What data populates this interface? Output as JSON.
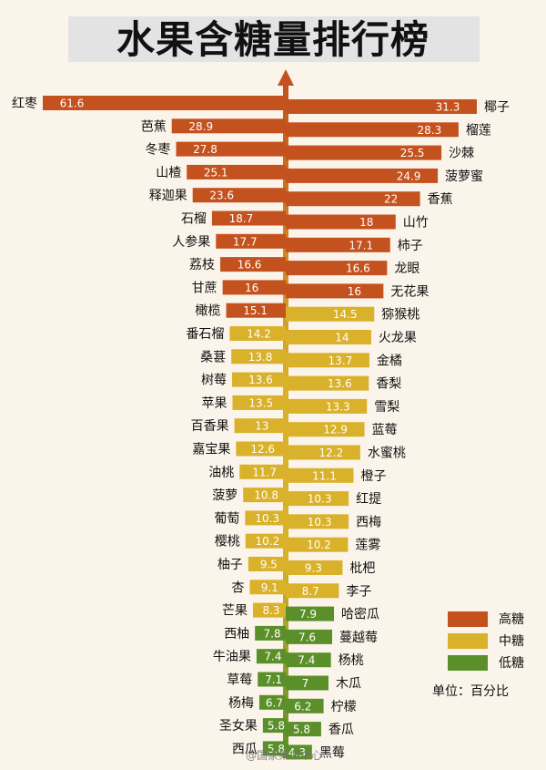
{
  "title": "水果含糖量排行榜",
  "legend": {
    "high": {
      "label": "高糖",
      "color": "#c4521f"
    },
    "mid": {
      "label": "中糖",
      "color": "#d9b12a"
    },
    "low": {
      "label": "低糖",
      "color": "#5b8f2a"
    }
  },
  "unit": "单位：百分比",
  "watermark": "@国家果业中心",
  "chart_data": {
    "type": "bar",
    "title": "水果含糖量排行榜",
    "unit": "单位：百分比",
    "series": [
      {
        "name": "left",
        "items": [
          {
            "name": "红枣",
            "value": 61.6,
            "level": "high"
          },
          {
            "name": "芭蕉",
            "value": 28.9,
            "level": "high"
          },
          {
            "name": "冬枣",
            "value": 27.8,
            "level": "high"
          },
          {
            "name": "山楂",
            "value": 25.1,
            "level": "high"
          },
          {
            "name": "释迦果",
            "value": 23.6,
            "level": "high"
          },
          {
            "name": "石榴",
            "value": 18.7,
            "level": "high"
          },
          {
            "name": "人参果",
            "value": 17.7,
            "level": "high"
          },
          {
            "name": "荔枝",
            "value": 16.6,
            "level": "high"
          },
          {
            "name": "甘蔗",
            "value": 16,
            "level": "high"
          },
          {
            "name": "橄榄",
            "value": 15.1,
            "level": "high"
          },
          {
            "name": "番石榴",
            "value": 14.2,
            "level": "mid"
          },
          {
            "name": "桑葚",
            "value": 13.8,
            "level": "mid"
          },
          {
            "name": "树莓",
            "value": 13.6,
            "level": "mid"
          },
          {
            "name": "苹果",
            "value": 13.5,
            "level": "mid"
          },
          {
            "name": "百香果",
            "value": 13,
            "level": "mid"
          },
          {
            "name": "嘉宝果",
            "value": 12.6,
            "level": "mid"
          },
          {
            "name": "油桃",
            "value": 11.7,
            "level": "mid"
          },
          {
            "name": "菠萝",
            "value": 10.8,
            "level": "mid"
          },
          {
            "name": "葡萄",
            "value": 10.3,
            "level": "mid"
          },
          {
            "name": "樱桃",
            "value": 10.2,
            "level": "mid"
          },
          {
            "name": "柚子",
            "value": 9.5,
            "level": "mid"
          },
          {
            "name": "杏",
            "value": 9.1,
            "level": "mid"
          },
          {
            "name": "芒果",
            "value": 8.3,
            "level": "mid"
          },
          {
            "name": "西柚",
            "value": 7.8,
            "level": "low"
          },
          {
            "name": "牛油果",
            "value": 7.4,
            "level": "low"
          },
          {
            "name": "草莓",
            "value": 7.1,
            "level": "low"
          },
          {
            "name": "杨梅",
            "value": 6.7,
            "level": "low"
          },
          {
            "name": "圣女果",
            "value": 5.8,
            "level": "low"
          },
          {
            "name": "西瓜",
            "value": 5.8,
            "level": "low"
          }
        ]
      },
      {
        "name": "right",
        "items": [
          {
            "name": "椰子",
            "value": 31.3,
            "level": "high"
          },
          {
            "name": "榴莲",
            "value": 28.3,
            "level": "high"
          },
          {
            "name": "沙棘",
            "value": 25.5,
            "level": "high"
          },
          {
            "name": "菠萝蜜",
            "value": 24.9,
            "level": "high"
          },
          {
            "name": "香蕉",
            "value": 22,
            "level": "high"
          },
          {
            "name": "山竹",
            "value": 18,
            "level": "high"
          },
          {
            "name": "柿子",
            "value": 17.1,
            "level": "high"
          },
          {
            "name": "龙眼",
            "value": 16.6,
            "level": "high"
          },
          {
            "name": "无花果",
            "value": 16,
            "level": "high"
          },
          {
            "name": "猕猴桃",
            "value": 14.5,
            "level": "mid"
          },
          {
            "name": "火龙果",
            "value": 14,
            "level": "mid"
          },
          {
            "name": "金橘",
            "value": 13.7,
            "level": "mid"
          },
          {
            "name": "香梨",
            "value": 13.6,
            "level": "mid"
          },
          {
            "name": "雪梨",
            "value": 13.3,
            "level": "mid"
          },
          {
            "name": "蓝莓",
            "value": 12.9,
            "level": "mid"
          },
          {
            "name": "水蜜桃",
            "value": 12.2,
            "level": "mid"
          },
          {
            "name": "橙子",
            "value": 11.1,
            "level": "mid"
          },
          {
            "name": "红提",
            "value": 10.3,
            "level": "mid"
          },
          {
            "name": "西梅",
            "value": 10.3,
            "level": "mid"
          },
          {
            "name": "莲雾",
            "value": 10.2,
            "level": "mid"
          },
          {
            "name": "枇杷",
            "value": 9.3,
            "level": "mid"
          },
          {
            "name": "李子",
            "value": 8.7,
            "level": "mid"
          },
          {
            "name": "哈密瓜",
            "value": 7.9,
            "level": "low"
          },
          {
            "name": "蔓越莓",
            "value": 7.6,
            "level": "low"
          },
          {
            "name": "杨桃",
            "value": 7.4,
            "level": "low"
          },
          {
            "name": "木瓜",
            "value": 7,
            "level": "low"
          },
          {
            "name": "柠檬",
            "value": 6.2,
            "level": "low"
          },
          {
            "name": "香瓜",
            "value": 5.8,
            "level": "low"
          },
          {
            "name": "黑莓",
            "value": 4.3,
            "level": "low"
          }
        ]
      }
    ]
  }
}
